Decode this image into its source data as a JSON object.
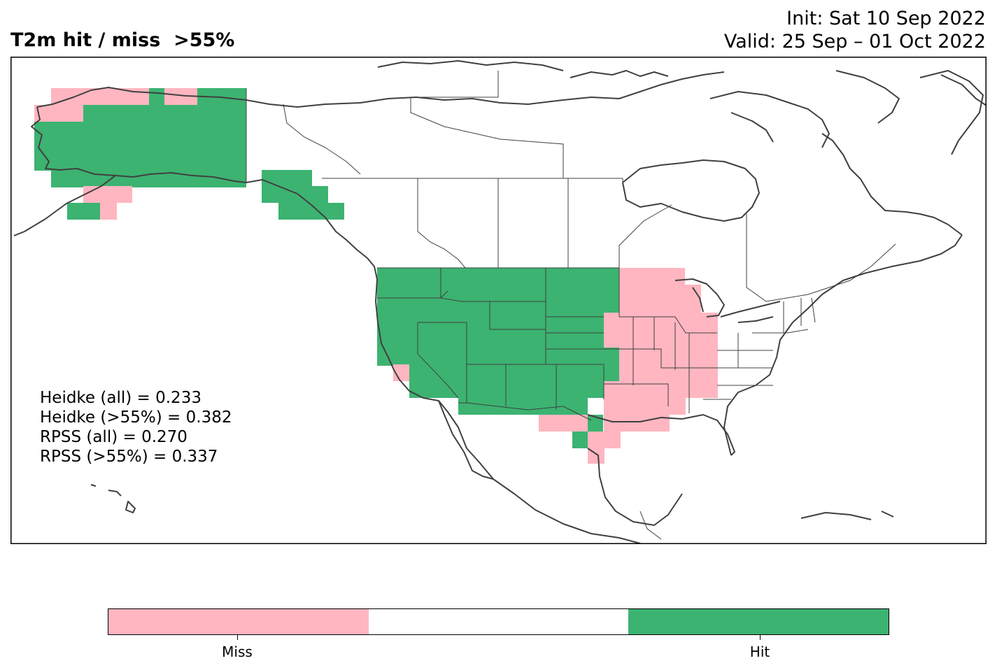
{
  "title": "T2m hit / miss  >55%",
  "init_line": "Init: Sat 10 Sep 2022",
  "valid_line": "Valid: 25 Sep – 01 Oct 2022",
  "scores": [
    "Heidke (all) = 0.233",
    "Heidke (>55%) = 0.382",
    "RPSS (all) = 0.270",
    "RPSS (>55%) = 0.337"
  ],
  "legend": {
    "categories": [
      "Miss",
      "",
      "Hit"
    ],
    "colors": [
      "#ffb6c1",
      "#ffffff",
      "#3cb371"
    ],
    "labels": [
      "Miss",
      "Hit"
    ]
  },
  "map": {
    "region": "North America",
    "hit_color": "#3cb371",
    "miss_color": "#ffb6c1",
    "outline_color": "#404040"
  }
}
